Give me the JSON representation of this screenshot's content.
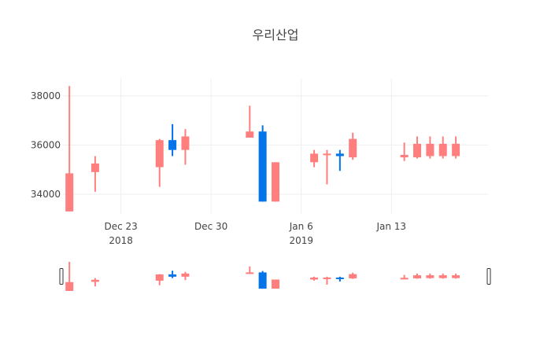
{
  "chart_data": {
    "type": "candlestick",
    "title": "우리산업",
    "colors": {
      "increasing": "#ff7f7f",
      "decreasing": "#0074e8",
      "grid": "#eeeeee",
      "text": "#444444"
    },
    "x_range": [
      "2018-12-19",
      "2019-01-20"
    ],
    "y_range": [
      33200,
      38700
    ],
    "y_ticks": [
      34000,
      36000,
      38000
    ],
    "y_tick_labels": [
      "34000",
      "36000",
      "38000"
    ],
    "x_ticks": [
      {
        "date": "2018-12-23",
        "label": "Dec 23",
        "sublabel": "2018"
      },
      {
        "date": "2018-12-30",
        "label": "Dec 30",
        "sublabel": ""
      },
      {
        "date": "2019-01-06",
        "label": "Jan 6",
        "sublabel": "2019"
      },
      {
        "date": "2019-01-13",
        "label": "Jan 13",
        "sublabel": ""
      }
    ],
    "candles": [
      {
        "date": "2018-12-19",
        "open": 33300,
        "high": 38400,
        "low": 33300,
        "close": 34850
      },
      {
        "date": "2018-12-21",
        "open": 34900,
        "high": 35550,
        "low": 34100,
        "close": 35250
      },
      {
        "date": "2018-12-26",
        "open": 35100,
        "high": 36250,
        "low": 34300,
        "close": 36200
      },
      {
        "date": "2018-12-27",
        "open": 36200,
        "high": 36850,
        "low": 35550,
        "close": 35800
      },
      {
        "date": "2018-12-28",
        "open": 35800,
        "high": 36650,
        "low": 35200,
        "close": 36350
      },
      {
        "date": "2019-01-02",
        "open": 36300,
        "high": 37600,
        "low": 36300,
        "close": 36550
      },
      {
        "date": "2019-01-03",
        "open": 36550,
        "high": 36800,
        "low": 33700,
        "close": 33700
      },
      {
        "date": "2019-01-04",
        "open": 33700,
        "high": 35300,
        "low": 33700,
        "close": 35300
      },
      {
        "date": "2019-01-07",
        "open": 35300,
        "high": 35800,
        "low": 35100,
        "close": 35650
      },
      {
        "date": "2019-01-08",
        "open": 35600,
        "high": 35800,
        "low": 34400,
        "close": 35650
      },
      {
        "date": "2019-01-09",
        "open": 35650,
        "high": 35800,
        "low": 34950,
        "close": 35550
      },
      {
        "date": "2019-01-10",
        "open": 35500,
        "high": 36500,
        "low": 35400,
        "close": 36250
      },
      {
        "date": "2019-01-14",
        "open": 35500,
        "high": 36100,
        "low": 35350,
        "close": 35600
      },
      {
        "date": "2019-01-15",
        "open": 35500,
        "high": 36350,
        "low": 35450,
        "close": 36050
      },
      {
        "date": "2019-01-16",
        "open": 35550,
        "high": 36350,
        "low": 35450,
        "close": 36050
      },
      {
        "date": "2019-01-17",
        "open": 35550,
        "high": 36350,
        "low": 35450,
        "close": 36050
      },
      {
        "date": "2019-01-18",
        "open": 35550,
        "high": 36350,
        "low": 35450,
        "close": 36050
      }
    ]
  }
}
